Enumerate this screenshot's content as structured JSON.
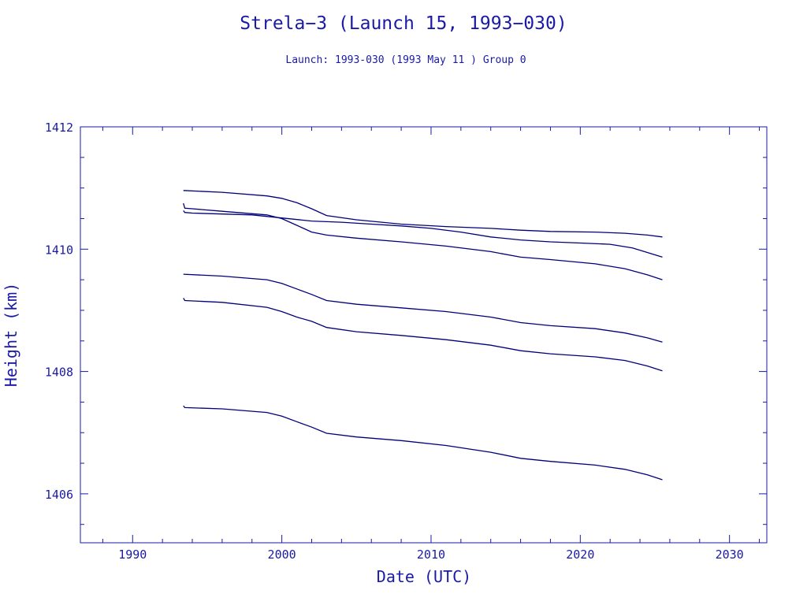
{
  "chart_data": {
    "type": "line",
    "title": "Strela−3 (Launch 15, 1993−030)",
    "subtitle": "Launch: 1993-030  (1993 May 11 )  Group 0",
    "xlabel": "Date (UTC)",
    "ylabel": "Height (km)",
    "xlim": [
      1986.5,
      2032.5
    ],
    "ylim": [
      1405.2,
      1412.0
    ],
    "x_ticks": [
      1990,
      2000,
      2010,
      2020,
      2030
    ],
    "x_tick_labels": [
      "1990",
      "2000",
      "2010",
      "2020",
      "2030"
    ],
    "y_ticks": [
      1406,
      1408,
      1410,
      1412
    ],
    "y_tick_labels": [
      "1406",
      "1408",
      "1410",
      "1412"
    ],
    "grid": false,
    "line_color": "#00007a",
    "axis_color": "#1a1aa6",
    "series": [
      {
        "x": [
          1993.4,
          1996,
          1999,
          2000,
          2001,
          2002,
          2003,
          2005,
          2008,
          2011,
          2014,
          2016,
          2018,
          2021,
          2023,
          2024.5,
          2025.5
        ],
        "y": [
          1410.96,
          1410.93,
          1410.87,
          1410.83,
          1410.76,
          1410.66,
          1410.55,
          1410.48,
          1410.41,
          1410.37,
          1410.34,
          1410.31,
          1410.29,
          1410.28,
          1410.26,
          1410.23,
          1410.2
        ]
      },
      {
        "x": [
          1993.4,
          1993.5,
          1994,
          1996,
          1999,
          2000,
          2001,
          2002,
          2003,
          2005,
          2008,
          2011,
          2014,
          2016,
          2018,
          2021,
          2023,
          2024.5,
          2025.5
        ],
        "y": [
          1410.75,
          1410.67,
          1410.66,
          1410.62,
          1410.56,
          1410.5,
          1410.39,
          1410.28,
          1410.23,
          1410.18,
          1410.12,
          1410.05,
          1409.96,
          1409.87,
          1409.83,
          1409.76,
          1409.68,
          1409.58,
          1409.5
        ]
      },
      {
        "x": [
          1993.4,
          1993.5,
          1994,
          1998,
          2000,
          2002,
          2004,
          2006,
          2008,
          2010,
          2012,
          2014,
          2016,
          2018,
          2020,
          2022,
          2023.5,
          2025.5
        ],
        "y": [
          1410.63,
          1410.6,
          1410.59,
          1410.56,
          1410.51,
          1410.46,
          1410.44,
          1410.41,
          1410.38,
          1410.34,
          1410.28,
          1410.2,
          1410.15,
          1410.12,
          1410.1,
          1410.08,
          1410.02,
          1409.87
        ]
      },
      {
        "x": [
          1993.4,
          1996,
          1999,
          2000,
          2001,
          2002,
          2003,
          2005,
          2008,
          2011,
          2014,
          2016,
          2018,
          2021,
          2023,
          2024.5,
          2025.5
        ],
        "y": [
          1409.59,
          1409.56,
          1409.5,
          1409.44,
          1409.35,
          1409.26,
          1409.16,
          1409.1,
          1409.04,
          1408.98,
          1408.89,
          1408.8,
          1408.75,
          1408.7,
          1408.63,
          1408.55,
          1408.48
        ]
      },
      {
        "x": [
          1993.4,
          1993.5,
          1996,
          1999,
          2000,
          2001,
          2002,
          2003,
          2005,
          2008,
          2011,
          2014,
          2016,
          2018,
          2021,
          2023,
          2024.5,
          2025.5
        ],
        "y": [
          1409.2,
          1409.16,
          1409.13,
          1409.05,
          1408.98,
          1408.89,
          1408.82,
          1408.72,
          1408.65,
          1408.59,
          1408.52,
          1408.43,
          1408.34,
          1408.29,
          1408.24,
          1408.18,
          1408.09,
          1408.01
        ]
      },
      {
        "x": [
          1993.4,
          1993.5,
          1996,
          1999,
          2000,
          2001,
          2002,
          2003,
          2005,
          2008,
          2011,
          2014,
          2016,
          2018,
          2021,
          2023,
          2024.5,
          2025.5
        ],
        "y": [
          1407.44,
          1407.41,
          1407.39,
          1407.33,
          1407.27,
          1407.18,
          1407.09,
          1406.99,
          1406.93,
          1406.87,
          1406.79,
          1406.68,
          1406.58,
          1406.53,
          1406.47,
          1406.4,
          1406.31,
          1406.23
        ]
      }
    ]
  }
}
